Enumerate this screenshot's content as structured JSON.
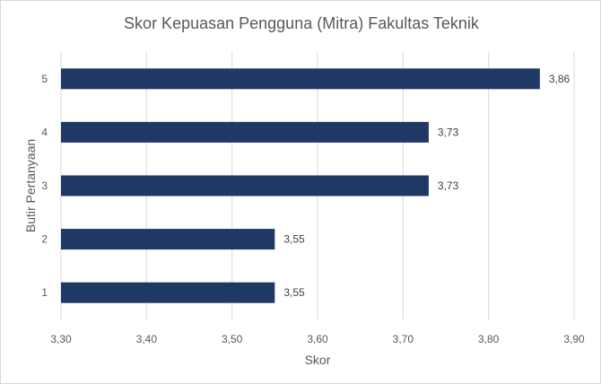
{
  "chart_data": {
    "type": "bar",
    "orientation": "horizontal",
    "title": "Skor Kepuasan Pengguna (Mitra) Fakultas Teknik",
    "xlabel": "Skor",
    "ylabel": "Butir Pertanyaan",
    "categories": [
      "1",
      "2",
      "3",
      "4",
      "5"
    ],
    "values": [
      3.55,
      3.55,
      3.73,
      3.73,
      3.86
    ],
    "data_labels": [
      "3,55",
      "3,55",
      "3,73",
      "3,73",
      "3,86"
    ],
    "xlim": [
      3.3,
      3.9
    ],
    "x_ticks": [
      "3,30",
      "3,40",
      "3,50",
      "3,60",
      "3,70",
      "3,80",
      "3,90"
    ],
    "grid": "vertical",
    "legend": "none",
    "bar_color": "#203864",
    "grid_color": "#d9d9d9"
  }
}
